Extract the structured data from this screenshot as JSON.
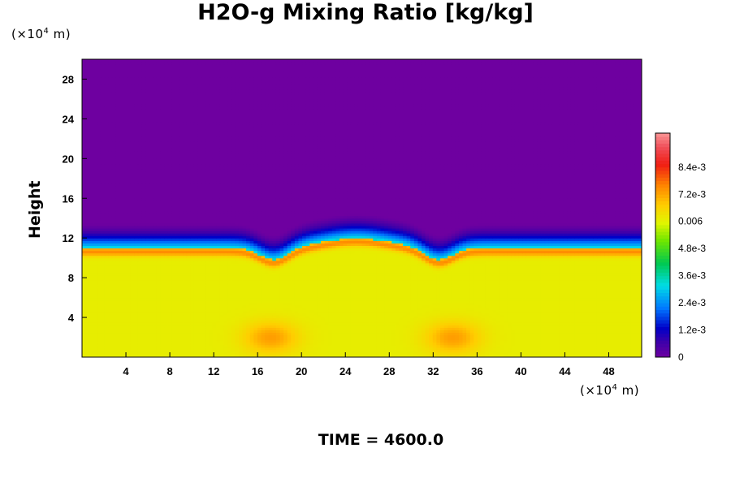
{
  "chart_data": {
    "type": "heatmap",
    "title": "H2O-g Mixing Ratio [kg/kg]",
    "ylabel": "Height",
    "xunit": {
      "prefix": "(×10",
      "exp": "4",
      "suffix": " m)"
    },
    "yunit": {
      "prefix": "(×10",
      "exp": "4",
      "suffix": " m)"
    },
    "xlim": [
      0,
      51
    ],
    "ylim": [
      0,
      30
    ],
    "xticks": [
      4,
      8,
      12,
      16,
      20,
      24,
      28,
      32,
      36,
      40,
      44,
      48
    ],
    "yticks": [
      4,
      8,
      12,
      16,
      20,
      24,
      28
    ],
    "colorbar": {
      "min": 0,
      "max": 0.0099,
      "labels": [
        "8.4e-3",
        "7.2e-3",
        "0.006",
        "4.8e-3",
        "3.6e-3",
        "2.4e-3",
        "1.2e-3",
        "0"
      ],
      "label_values": [
        0.0084,
        0.0072,
        0.006,
        0.0048,
        0.0036,
        0.0024,
        0.0012,
        0
      ]
    },
    "field": {
      "lower_layer_value": 0.0061,
      "upper_layer_value": 0,
      "interface_height": 11.0,
      "inversion_peak_value": 0.0075,
      "bumps": [
        {
          "x": 17.5,
          "dip": 1.2
        },
        {
          "x": 32.5,
          "dip": 1.2
        }
      ],
      "central_bulge": {
        "x": 25,
        "rise": 1.0
      },
      "warm_eddies": [
        {
          "x": 17.2,
          "y": 2.0
        },
        {
          "x": 33.8,
          "y": 2.0
        }
      ]
    },
    "time_label": "TIME = 4600.0"
  }
}
